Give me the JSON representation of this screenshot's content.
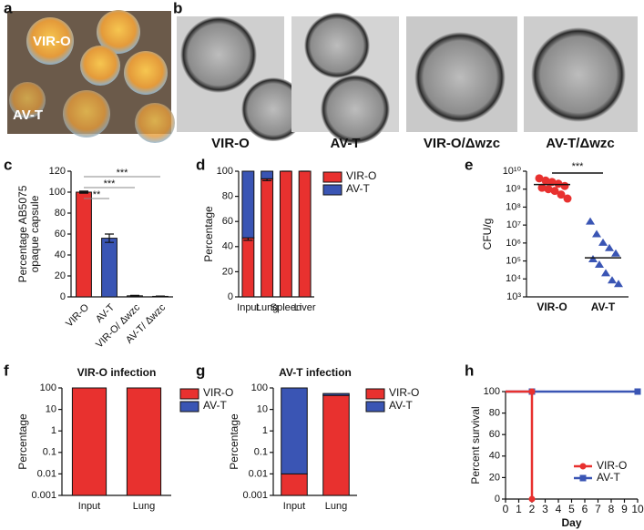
{
  "figure": {
    "panel_labels": [
      "a",
      "b",
      "c",
      "d",
      "e",
      "f",
      "g",
      "h"
    ],
    "photo_labels": [
      "VIR-O",
      "AV-T"
    ],
    "b_captions": [
      "VIR-O",
      "AV-T",
      "VIR-O/Δwzc",
      "AV-T/Δwzc"
    ]
  },
  "chart_data": [
    {
      "type": "bar",
      "ylabel": [
        "Percentage AB5075",
        "opaque capsule"
      ],
      "categories": [
        "VIR-O",
        "AV-T",
        "VIR-O/ Δwzc",
        "AV-T/ Δwzc"
      ],
      "values": [
        100,
        56,
        1,
        0.5
      ],
      "errors": [
        1,
        4,
        0.4,
        0.3
      ],
      "colors": [
        "#e8312f",
        "#3a55b4",
        "#888888",
        "#888888"
      ],
      "ylim": [
        0,
        120
      ],
      "yticks": [
        0,
        20,
        40,
        60,
        80,
        100,
        120
      ],
      "annotations": [
        "**",
        "***",
        "***"
      ]
    },
    {
      "type": "stacked",
      "ylabel": "Percentage",
      "categories": [
        "Input",
        "Lung",
        "Spleen",
        "Liver"
      ],
      "series": [
        {
          "name": "VIR-O",
          "color": "#e8312f",
          "values": [
            47,
            94,
            100,
            100
          ],
          "errors": [
            2,
            1.5,
            0,
            0
          ]
        },
        {
          "name": "AV-T",
          "color": "#3a55b4",
          "values": [
            53,
            6,
            0,
            0
          ]
        }
      ],
      "ylim": [
        0,
        100
      ],
      "yticks": [
        0,
        20,
        40,
        60,
        80,
        100
      ]
    },
    {
      "type": "scatter",
      "ylabel": "CFU/g",
      "log": true,
      "categories": [
        "VIR-O",
        "AV-T"
      ],
      "series": [
        {
          "color": "#e8312f",
          "marker": "circle",
          "values": [
            4000000000,
            3000000000,
            2500000000,
            2000000000,
            1500000000,
            1200000000,
            1000000000,
            800000000,
            500000000,
            300000000
          ]
        },
        {
          "color": "#3a55b4",
          "marker": "triangle",
          "values": [
            15000000,
            3000000,
            1000000,
            500000,
            250000,
            120000,
            60000,
            20000,
            8000,
            5000
          ]
        }
      ],
      "medians": [
        1800000000,
        150000
      ],
      "ylim": [
        1000,
        10000000000
      ],
      "yticks": [
        {
          "value": 1000,
          "label": "10³"
        },
        {
          "value": 10000,
          "label": "10⁴"
        },
        {
          "value": 100000,
          "label": "10⁵"
        },
        {
          "value": 1000000,
          "label": "10⁶"
        },
        {
          "value": 10000000,
          "label": "10⁷"
        },
        {
          "value": 100000000,
          "label": "10⁸"
        },
        {
          "value": 1000000000,
          "label": "10⁹"
        },
        {
          "value": 10000000000,
          "label": "10¹⁰"
        }
      ],
      "annotations": [
        "***"
      ]
    },
    {
      "type": "stacked",
      "title": "VIR-O infection",
      "ylabel": "Percentage",
      "log": true,
      "categories": [
        "Input",
        "Lung"
      ],
      "series": [
        {
          "name": "VIR-O",
          "color": "#e8312f",
          "values": [
            100,
            100
          ]
        },
        {
          "name": "AV-T",
          "color": "#3a55b4",
          "values": [
            0,
            0
          ]
        }
      ],
      "ylim": [
        0.001,
        100
      ],
      "yticks": [
        0.001,
        0.01,
        0.1,
        1,
        10,
        100
      ]
    },
    {
      "type": "stacked",
      "title": "AV-T infection",
      "ylabel": "Percentage",
      "log": true,
      "categories": [
        "Input",
        "Lung"
      ],
      "series": [
        {
          "name": "VIR-O",
          "color": "#e8312f",
          "values": [
            0.01,
            45
          ]
        },
        {
          "name": "AV-T",
          "color": "#3a55b4",
          "values": [
            99.99,
            10
          ]
        }
      ],
      "ylim": [
        0.001,
        100
      ],
      "yticks": [
        0.001,
        0.01,
        0.1,
        1,
        10,
        100
      ]
    },
    {
      "type": "line",
      "ylabel": "Percent survival",
      "xlabel": "Day",
      "series": [
        {
          "name": "VIR-O",
          "color": "#e8312f",
          "marker": "circle",
          "x": [
            0,
            2,
            2
          ],
          "values": [
            100,
            100,
            0
          ]
        },
        {
          "name": "AV-T",
          "color": "#3a55b4",
          "marker": "square",
          "x": [
            0,
            2,
            10
          ],
          "values": [
            100,
            100,
            100
          ]
        }
      ],
      "xlim": [
        0,
        10
      ],
      "xticks": [
        0,
        1,
        2,
        3,
        4,
        5,
        6,
        7,
        8,
        9,
        10
      ],
      "ylim": [
        0,
        100
      ],
      "yticks": [
        0,
        20,
        40,
        60,
        80,
        100
      ]
    }
  ]
}
